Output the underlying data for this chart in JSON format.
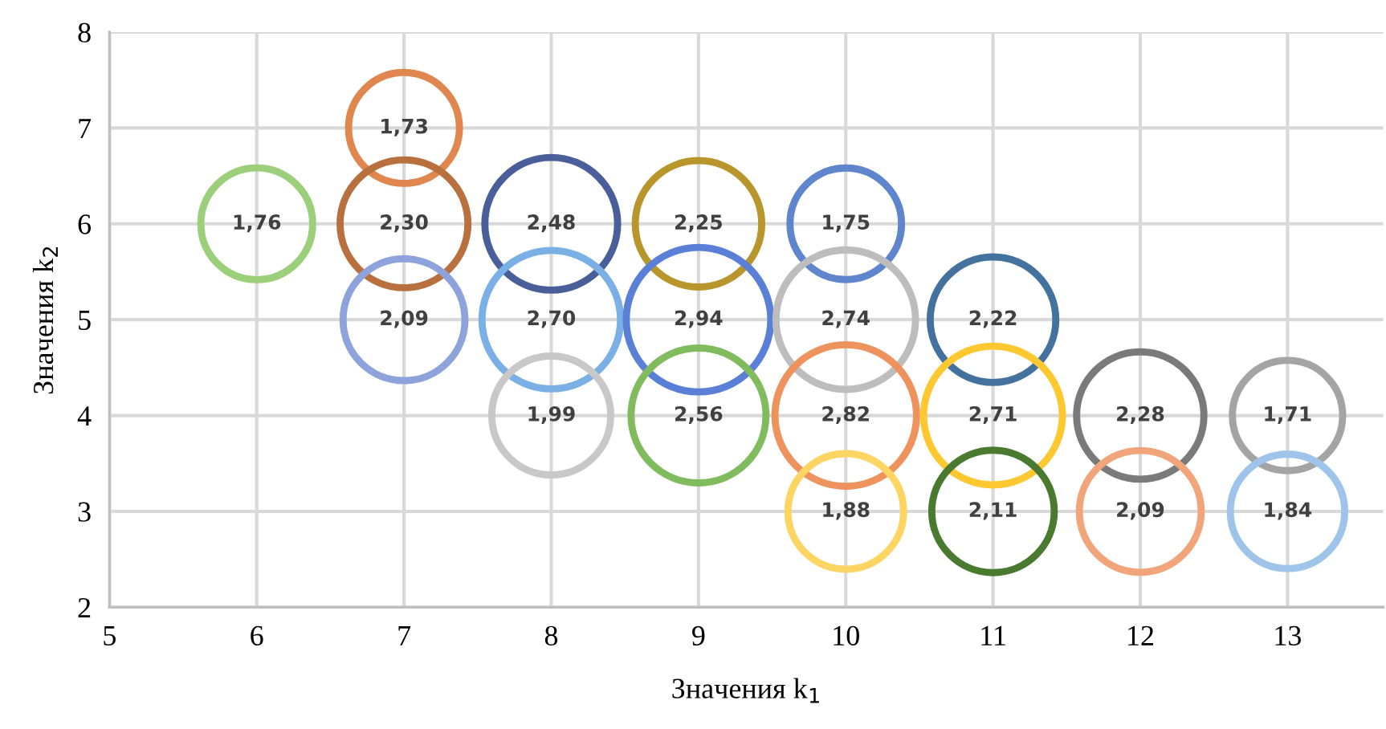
{
  "chart_data": {
    "type": "bubble",
    "xlabel": "Значения k$_{1}$",
    "ylabel": "Значения k$_{2}$",
    "x": [
      6,
      7,
      7,
      7,
      8,
      8,
      8,
      9,
      9,
      9,
      10,
      10,
      10,
      10,
      11,
      11,
      11,
      12,
      12,
      13,
      13
    ],
    "values": [
      6,
      7,
      6,
      5,
      6,
      5,
      4,
      6,
      5,
      4,
      6,
      5,
      4,
      3,
      5,
      4,
      3,
      4,
      3,
      4,
      3
    ],
    "sizes": [
      1.76,
      1.73,
      2.3,
      2.09,
      2.48,
      2.7,
      1.99,
      2.25,
      2.94,
      2.56,
      1.75,
      2.74,
      2.82,
      1.88,
      2.22,
      2.71,
      2.11,
      2.28,
      2.09,
      1.71,
      1.84
    ],
    "value_labels": [
      "1,76",
      "1,73",
      "2,30",
      "2,09",
      "2,48",
      "2,70",
      "1,99",
      "2,25",
      "2,94",
      "2,56",
      "1,75",
      "2,74",
      "2,82",
      "1,88",
      "2,22",
      "2,71",
      "2,11",
      "2,28",
      "2,09",
      "1,71",
      "1,84"
    ],
    "colors": [
      "#9ccf7a",
      "#e0874f",
      "#b8703f",
      "#8ea2dc",
      "#4a5f9a",
      "#7ab0e6",
      "#c8c8c8",
      "#b8962c",
      "#5a7fd6",
      "#80bb5e",
      "#5f86cc",
      "#bdbdbd",
      "#ee935e",
      "#fdd563",
      "#44729e",
      "#fdc830",
      "#4a7a30",
      "#7a7a7a",
      "#f2a47a",
      "#a4a4a4",
      "#9ec4ea"
    ],
    "xlim": [
      5,
      13.65
    ],
    "ylim": [
      2,
      8
    ],
    "xticks": [
      5,
      6,
      7,
      8,
      9,
      10,
      11,
      12,
      13
    ],
    "yticks": [
      2,
      3,
      4,
      5,
      6,
      7,
      8
    ],
    "grid": true
  }
}
